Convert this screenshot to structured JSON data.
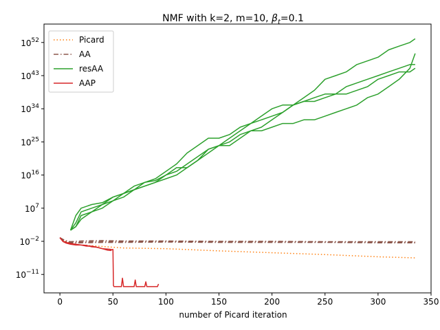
{
  "chart_data": {
    "type": "line",
    "title": "NMF with k=2, m=10,  β_t=0.1",
    "title_parts": {
      "prefix": "NMF with k=2, m=10,  ",
      "beta": "β",
      "beta_sub": "t",
      "suffix": "=0.1"
    },
    "xlabel": "number of Picard iteration",
    "ylabel": "",
    "xlim": [
      -15,
      350
    ],
    "ylim_log10": [
      -16,
      57
    ],
    "yscale": "log",
    "grid": false,
    "legend_position": "top-left",
    "x_ticks": [
      0,
      50,
      100,
      150,
      200,
      250,
      300,
      350
    ],
    "y_ticks": [
      {
        "exp": -11,
        "base": "10",
        "sup": "−11"
      },
      {
        "exp": -2,
        "base": "10",
        "sup": "−2"
      },
      {
        "exp": 7,
        "base": "10",
        "sup": "7"
      },
      {
        "exp": 16,
        "base": "10",
        "sup": "16"
      },
      {
        "exp": 25,
        "base": "10",
        "sup": "25"
      },
      {
        "exp": 34,
        "base": "10",
        "sup": "34"
      },
      {
        "exp": 43,
        "base": "10",
        "sup": "43"
      },
      {
        "exp": 52,
        "base": "10",
        "sup": "52"
      }
    ],
    "series": [
      {
        "name": "Picard",
        "color": "#ff7f0e",
        "style": "dotted",
        "runs": [
          {
            "x": [
              0,
              5,
              10,
              20,
              40,
              60,
              100,
              150,
              200,
              250,
              300,
              335
            ],
            "log10y": [
              -1.0,
              -2.0,
              -2.6,
              -3.0,
              -3.4,
              -3.8,
              -4.0,
              -4.6,
              -5.1,
              -5.6,
              -6.2,
              -6.5
            ]
          }
        ]
      },
      {
        "name": "AA",
        "color": "#8c564b",
        "style": "dashdot",
        "runs": [
          {
            "x": [
              0,
              5,
              10,
              20,
              40,
              60,
              100,
              150,
              200,
              250,
              300,
              335
            ],
            "log10y": [
              -1.0,
              -2.0,
              -2.3,
              -2.2,
              -2.1,
              -2.1,
              -2.0,
              -2.1,
              -2.1,
              -2.2,
              -2.2,
              -2.3
            ]
          },
          {
            "x": [
              0,
              5,
              10,
              20,
              40,
              60,
              100,
              150,
              200,
              250,
              300,
              335
            ],
            "log10y": [
              -1.0,
              -1.8,
              -2.1,
              -1.9,
              -1.8,
              -1.9,
              -1.9,
              -2.0,
              -2.0,
              -2.1,
              -2.1,
              -2.1
            ]
          },
          {
            "x": [
              0,
              5,
              10,
              20,
              40,
              60,
              100,
              150,
              200,
              250,
              300,
              335
            ],
            "log10y": [
              -1.0,
              -2.1,
              -2.5,
              -2.4,
              -2.3,
              -2.3,
              -2.2,
              -2.3,
              -2.3,
              -2.3,
              -2.4,
              -2.4
            ]
          }
        ]
      },
      {
        "name": "resAA",
        "color": "#2ca02c",
        "style": "solid",
        "runs": [
          {
            "x": [
              10,
              15,
              20,
              30,
              40,
              50,
              60,
              70,
              80,
              90,
              100,
              110,
              120,
              130,
              140,
              150,
              160,
              170,
              180,
              190,
              200,
              210,
              220,
              230,
              240,
              250,
              260,
              270,
              280,
              290,
              300,
              310,
              320,
              330,
              335
            ],
            "log10y": [
              1,
              5,
              7,
              8,
              8.5,
              10,
              11,
              12,
              14,
              14.5,
              16,
              18,
              18,
              20,
              23,
              24,
              24,
              26,
              28,
              28,
              29,
              30,
              30,
              31,
              31,
              32,
              33,
              34,
              35,
              37,
              38,
              40,
              42,
              45,
              49
            ]
          },
          {
            "x": [
              10,
              15,
              20,
              30,
              40,
              50,
              60,
              70,
              80,
              90,
              100,
              110,
              120,
              130,
              140,
              150,
              160,
              170,
              180,
              190,
              200,
              210,
              220,
              230,
              240,
              250,
              260,
              270,
              280,
              290,
              300,
              310,
              320,
              330,
              335
            ],
            "log10y": [
              1,
              3,
              6,
              7,
              8,
              9,
              11,
              13,
              14,
              15,
              17,
              19,
              22,
              24,
              26,
              26,
              27,
              29,
              30,
              31,
              32,
              33,
              35,
              37,
              39,
              42,
              43,
              44,
              46,
              47,
              48,
              50,
              51,
              52,
              53
            ]
          },
          {
            "x": [
              10,
              15,
              20,
              30,
              40,
              50,
              60,
              70,
              80,
              90,
              100,
              110,
              120,
              130,
              140,
              150,
              160,
              170,
              180,
              190,
              200,
              210,
              220,
              230,
              240,
              250,
              260,
              270,
              280,
              290,
              300,
              310,
              320,
              330,
              335
            ],
            "log10y": [
              1,
              2,
              5,
              6,
              7,
              9,
              10,
              12,
              13,
              14,
              16,
              17,
              19,
              21,
              23,
              24,
              25,
              27,
              28,
              29,
              31,
              33,
              35,
              36,
              36,
              37,
              38,
              38,
              39,
              40,
              42,
              43,
              44,
              44,
              45
            ]
          },
          {
            "x": [
              10,
              15,
              20,
              30,
              40,
              50,
              60,
              70,
              80,
              90,
              100,
              110,
              120,
              130,
              140,
              150,
              160,
              170,
              180,
              190,
              200,
              210,
              220,
              230,
              240,
              250,
              260,
              270,
              280,
              290,
              300,
              310,
              320,
              330,
              335
            ],
            "log10y": [
              1,
              2,
              4,
              6,
              8,
              10,
              11,
              12,
              13,
              14,
              15,
              16,
              18,
              20,
              22,
              24,
              26,
              28,
              30,
              32,
              34,
              35,
              35,
              36,
              37,
              38,
              38,
              40,
              41,
              42,
              43,
              44,
              45,
              46,
              46
            ]
          }
        ]
      },
      {
        "name": "AAP",
        "color": "#d62728",
        "style": "solid",
        "runs": [
          {
            "x": [
              0,
              3,
              6,
              10,
              15,
              20,
              25,
              30,
              35,
              40,
              45,
              48,
              49,
              50,
              50.5,
              51,
              55,
              58,
              59,
              60,
              61,
              65,
              70,
              71,
              72,
              75,
              80,
              81,
              82,
              85,
              90,
              92,
              93
            ],
            "log10y": [
              -1.0,
              -2.0,
              -2.3,
              -2.6,
              -2.8,
              -3.0,
              -3.1,
              -3.5,
              -3.6,
              -4.0,
              -4.1,
              -4.2,
              -4.3,
              -4.2,
              -14.0,
              -14.3,
              -14.3,
              -14.3,
              -12.0,
              -14.3,
              -14.3,
              -14.3,
              -14.3,
              -12.5,
              -14.3,
              -14.3,
              -14.3,
              -13.0,
              -14.3,
              -14.3,
              -14.3,
              -14.3,
              -13.6
            ]
          },
          {
            "x": [
              0,
              3,
              6,
              10,
              15,
              20,
              25,
              30,
              35,
              40,
              45,
              48,
              49
            ],
            "log10y": [
              -1.0,
              -2.1,
              -2.5,
              -2.8,
              -3.0,
              -3.0,
              -3.3,
              -3.3,
              -3.6,
              -4.0,
              -4.4,
              -4.5,
              -4.2
            ]
          }
        ]
      }
    ]
  }
}
